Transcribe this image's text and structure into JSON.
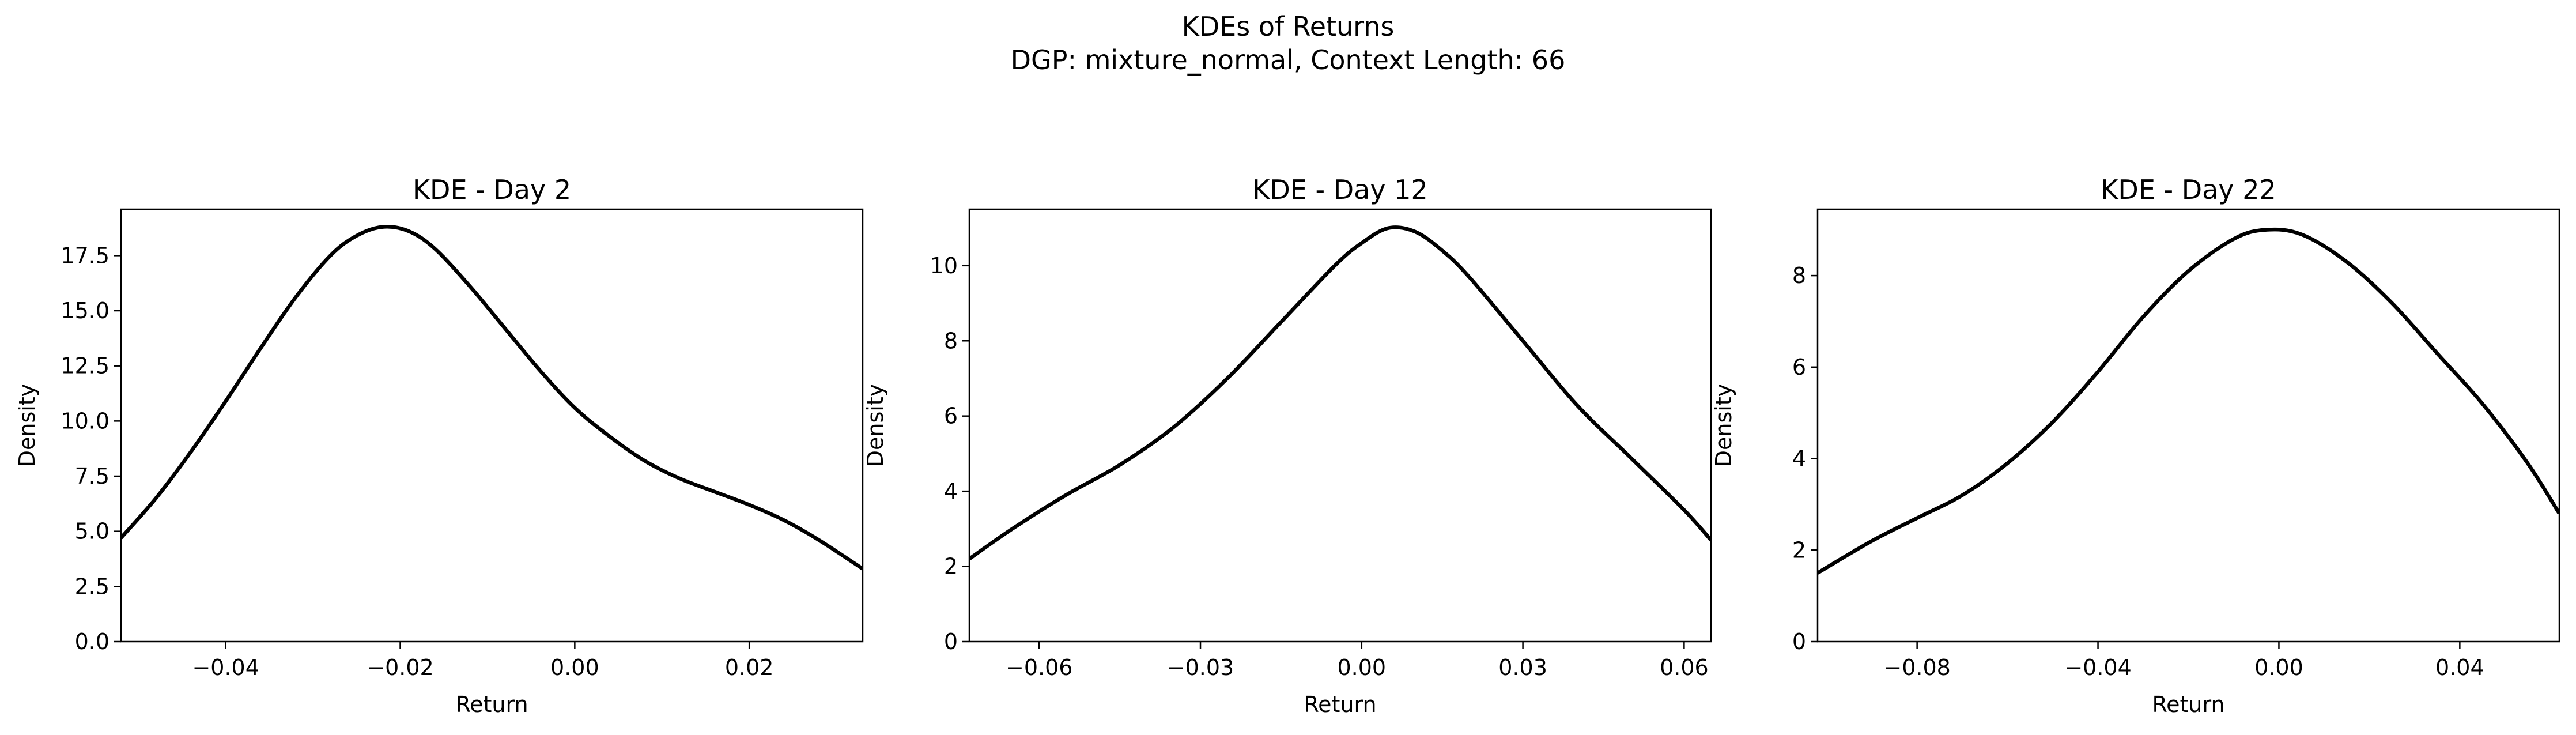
{
  "figure": {
    "title_line1": "KDEs of Returns",
    "title_line2": "DGP: mixture_normal, Context Length: 66"
  },
  "chart_data": [
    {
      "type": "line",
      "title": "KDE - Day 2",
      "xlabel": "Return",
      "ylabel": "Density",
      "xlim": [
        -0.052,
        0.033
      ],
      "ylim": [
        0,
        19.6
      ],
      "xticks": [
        -0.04,
        -0.02,
        0.0,
        0.02
      ],
      "xtick_labels": [
        "−0.04",
        "−0.02",
        "0.00",
        "0.02"
      ],
      "yticks": [
        0,
        2.5,
        5,
        7.5,
        10,
        12.5,
        15,
        17.5
      ],
      "ytick_labels": [
        "0.0",
        "2.5",
        "5.0",
        "7.5",
        "10.0",
        "12.5",
        "15.0",
        "17.5"
      ],
      "grid": false,
      "series": [
        {
          "color": "#000000",
          "x": [
            -0.052,
            -0.048,
            -0.044,
            -0.04,
            -0.036,
            -0.032,
            -0.028,
            -0.025,
            -0.022,
            -0.019,
            -0.016,
            -0.012,
            -0.008,
            -0.004,
            0.0,
            0.004,
            0.008,
            0.012,
            0.016,
            0.02,
            0.024,
            0.028,
            0.033
          ],
          "y": [
            4.7,
            6.5,
            8.6,
            10.9,
            13.3,
            15.6,
            17.5,
            18.4,
            18.8,
            18.6,
            17.8,
            16.1,
            14.2,
            12.3,
            10.6,
            9.3,
            8.2,
            7.4,
            6.8,
            6.2,
            5.5,
            4.6,
            3.3
          ]
        }
      ]
    },
    {
      "type": "line",
      "title": "KDE - Day 12",
      "xlabel": "Return",
      "ylabel": "Density",
      "xlim": [
        -0.073,
        0.065
      ],
      "ylim": [
        0,
        11.5
      ],
      "xticks": [
        -0.06,
        -0.03,
        0.0,
        0.03,
        0.06
      ],
      "xtick_labels": [
        "−0.06",
        "−0.03",
        "0.00",
        "0.03",
        "0.06"
      ],
      "yticks": [
        0,
        2,
        4,
        6,
        8,
        10
      ],
      "ytick_labels": [
        "0",
        "2",
        "4",
        "6",
        "8",
        "10"
      ],
      "grid": false,
      "series": [
        {
          "color": "#000000",
          "x": [
            -0.073,
            -0.065,
            -0.055,
            -0.045,
            -0.035,
            -0.025,
            -0.015,
            -0.005,
            0.0,
            0.005,
            0.01,
            0.015,
            0.02,
            0.03,
            0.04,
            0.05,
            0.06,
            0.065
          ],
          "y": [
            2.2,
            3.0,
            3.9,
            4.7,
            5.7,
            7.0,
            8.5,
            10.0,
            10.6,
            11.0,
            10.9,
            10.4,
            9.7,
            8.0,
            6.3,
            4.9,
            3.5,
            2.7
          ]
        }
      ]
    },
    {
      "type": "line",
      "title": "KDE - Day 22",
      "xlabel": "Return",
      "ylabel": "Density",
      "xlim": [
        -0.102,
        0.062
      ],
      "ylim": [
        0,
        9.45
      ],
      "xticks": [
        -0.08,
        -0.04,
        0.0,
        0.04
      ],
      "xtick_labels": [
        "−0.08",
        "−0.04",
        "0.00",
        "0.04"
      ],
      "yticks": [
        0,
        2,
        4,
        6,
        8
      ],
      "ytick_labels": [
        "0",
        "2",
        "4",
        "6",
        "8"
      ],
      "grid": false,
      "series": [
        {
          "color": "#000000",
          "x": [
            -0.102,
            -0.09,
            -0.08,
            -0.07,
            -0.06,
            -0.05,
            -0.04,
            -0.03,
            -0.02,
            -0.01,
            -0.003,
            0.005,
            0.015,
            0.025,
            0.035,
            0.045,
            0.055,
            0.062
          ],
          "y": [
            1.5,
            2.2,
            2.7,
            3.2,
            3.9,
            4.8,
            5.9,
            7.1,
            8.1,
            8.8,
            9.0,
            8.9,
            8.3,
            7.4,
            6.3,
            5.2,
            3.9,
            2.8
          ]
        }
      ]
    }
  ]
}
